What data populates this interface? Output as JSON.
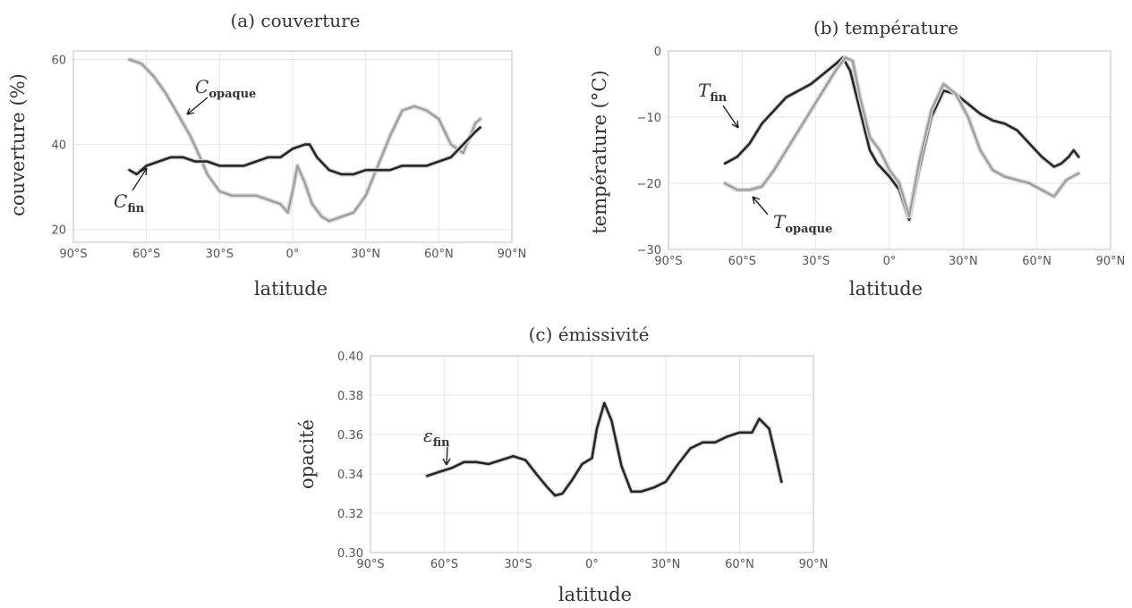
{
  "chart_data": [
    {
      "type": "line",
      "title": "(a) couverture",
      "xlabel": "latitude",
      "ylabel": "couverture (%)",
      "xlim": [
        -90,
        90
      ],
      "ylim": [
        17,
        62
      ],
      "xticks": [
        -90,
        -60,
        -30,
        0,
        30,
        60,
        90
      ],
      "xtick_labels": [
        "90°S",
        "60°S",
        "30°S",
        "0°",
        "30°N",
        "60°N",
        "90°N"
      ],
      "yticks": [
        20,
        40,
        60
      ],
      "ytick_labels": [
        "20",
        "40",
        "60"
      ],
      "grid": true,
      "series": [
        {
          "name": "C_opaque",
          "color": "#9a9a9a",
          "x": [
            -67,
            -62,
            -57,
            -52,
            -47,
            -42,
            -38,
            -35,
            -30,
            -25,
            -20,
            -15,
            -10,
            -5,
            -2,
            0,
            2,
            5,
            8,
            12,
            15,
            20,
            25,
            30,
            35,
            40,
            45,
            50,
            55,
            60,
            65,
            70,
            75,
            77
          ],
          "y": [
            60,
            59,
            56,
            52,
            47,
            42,
            37,
            33,
            29,
            28,
            28,
            28,
            27,
            26,
            24,
            29,
            35,
            31,
            26,
            23,
            22,
            23,
            24,
            28,
            35,
            42,
            48,
            49,
            48,
            46,
            40,
            38,
            45,
            46
          ]
        },
        {
          "name": "C_fin",
          "color": "#262626",
          "x": [
            -67,
            -64,
            -60,
            -55,
            -50,
            -45,
            -40,
            -35,
            -30,
            -25,
            -20,
            -15,
            -10,
            -5,
            0,
            5,
            7,
            10,
            15,
            20,
            25,
            30,
            35,
            40,
            45,
            50,
            55,
            60,
            65,
            70,
            75,
            77
          ],
          "y": [
            34,
            33,
            35,
            36,
            37,
            37,
            36,
            36,
            35,
            35,
            35,
            36,
            37,
            37,
            39,
            40,
            40,
            37,
            34,
            33,
            33,
            34,
            34,
            34,
            35,
            35,
            35,
            36,
            37,
            40,
            43,
            44
          ]
        }
      ],
      "annotations": [
        {
          "symbol": "C",
          "subscript": "opaque"
        },
        {
          "symbol": "C",
          "subscript": "fin"
        }
      ]
    },
    {
      "type": "line",
      "title": "(b) température",
      "xlabel": "latitude",
      "ylabel": "température (°C)",
      "xlim": [
        -90,
        90
      ],
      "ylim": [
        -30,
        0
      ],
      "xticks": [
        -90,
        -60,
        -30,
        0,
        30,
        60,
        90
      ],
      "xtick_labels": [
        "90°S",
        "60°S",
        "30°S",
        "0°",
        "30°N",
        "60°N",
        "90°N"
      ],
      "yticks": [
        -30,
        -20,
        -10,
        0
      ],
      "ytick_labels": [
        "−30",
        "−20",
        "−10",
        "0"
      ],
      "grid": true,
      "series": [
        {
          "name": "T_fin",
          "color": "#262626",
          "x": [
            -67,
            -62,
            -57,
            -52,
            -47,
            -42,
            -37,
            -32,
            -27,
            -22,
            -19,
            -16,
            -12,
            -8,
            -5,
            0,
            4,
            8,
            12,
            17,
            22,
            27,
            32,
            37,
            42,
            47,
            52,
            57,
            62,
            67,
            70,
            73,
            75,
            77
          ],
          "y": [
            -17,
            -16,
            -14,
            -11,
            -9,
            -7,
            -6,
            -5,
            -3.5,
            -2,
            -1,
            -3,
            -9,
            -15,
            -17,
            -19,
            -21,
            -25.5,
            -18,
            -10,
            -6,
            -6.5,
            -8,
            -9.5,
            -10.5,
            -11,
            -12,
            -14,
            -16,
            -17.5,
            -17,
            -16,
            -15,
            -16
          ]
        },
        {
          "name": "T_opaque",
          "color": "#9a9a9a",
          "x": [
            -67,
            -62,
            -57,
            -52,
            -47,
            -42,
            -37,
            -32,
            -27,
            -22,
            -18,
            -15,
            -12,
            -8,
            -4,
            0,
            4,
            8,
            12,
            17,
            22,
            27,
            32,
            37,
            42,
            47,
            52,
            57,
            62,
            67,
            72,
            77
          ],
          "y": [
            -20,
            -21,
            -21,
            -20.5,
            -18,
            -15,
            -12,
            -9,
            -6,
            -3,
            -1,
            -1.5,
            -7,
            -13,
            -15,
            -18,
            -20,
            -25,
            -17,
            -9,
            -5,
            -6.5,
            -10,
            -15,
            -18,
            -19,
            -19.5,
            -20,
            -21,
            -22,
            -19.5,
            -18.5
          ]
        }
      ],
      "annotations": [
        {
          "symbol": "T",
          "subscript": "fin"
        },
        {
          "symbol": "T",
          "subscript": "opaque"
        }
      ]
    },
    {
      "type": "line",
      "title": "(c) émissivité",
      "xlabel": "latitude",
      "ylabel": "opacité",
      "xlim": [
        -90,
        90
      ],
      "ylim": [
        0.3,
        0.4
      ],
      "xticks": [
        -90,
        -60,
        -30,
        0,
        30,
        60,
        90
      ],
      "xtick_labels": [
        "90°S",
        "60°S",
        "30°S",
        "0°",
        "30°N",
        "60°N",
        "90°N"
      ],
      "yticks": [
        0.3,
        0.32,
        0.34,
        0.36,
        0.38,
        0.4
      ],
      "ytick_labels": [
        "0.30",
        "0.32",
        "0.34",
        "0.36",
        "0.38",
        "0.40"
      ],
      "grid": true,
      "series": [
        {
          "name": "ε_fin",
          "color": "#262626",
          "x": [
            -67,
            -62,
            -57,
            -52,
            -47,
            -42,
            -37,
            -32,
            -27,
            -22,
            -18,
            -15,
            -12,
            -8,
            -4,
            0,
            2,
            5,
            8,
            12,
            16,
            20,
            25,
            30,
            35,
            40,
            45,
            50,
            55,
            60,
            65,
            68,
            72,
            75,
            77
          ],
          "y": [
            0.339,
            0.341,
            0.343,
            0.346,
            0.346,
            0.345,
            0.347,
            0.349,
            0.347,
            0.339,
            0.333,
            0.329,
            0.33,
            0.337,
            0.345,
            0.348,
            0.363,
            0.376,
            0.367,
            0.344,
            0.331,
            0.331,
            0.333,
            0.336,
            0.345,
            0.353,
            0.356,
            0.356,
            0.359,
            0.361,
            0.361,
            0.368,
            0.363,
            0.347,
            0.336
          ]
        }
      ],
      "annotations": [
        {
          "symbol": "ε",
          "subscript": "fin"
        }
      ]
    }
  ]
}
